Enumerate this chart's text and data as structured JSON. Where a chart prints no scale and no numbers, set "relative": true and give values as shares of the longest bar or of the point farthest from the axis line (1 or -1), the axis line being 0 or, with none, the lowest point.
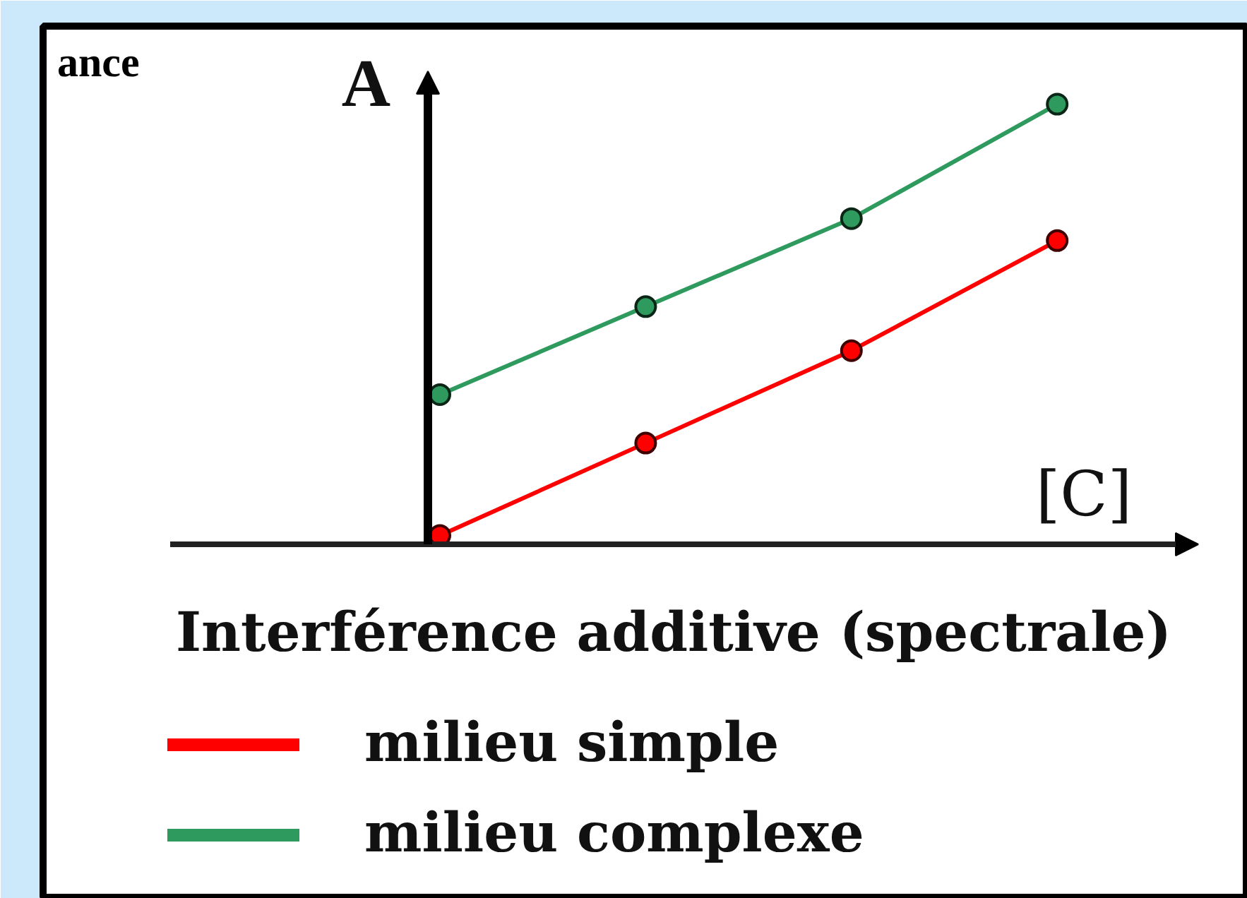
{
  "chart_data": {
    "type": "line",
    "title": "Interférence additive (spectrale)",
    "xlabel": "[C]",
    "ylabel": "A",
    "annotations": [
      "ance"
    ],
    "categories": [
      null,
      null,
      null,
      null
    ],
    "relative": true,
    "marker": "circle",
    "legend": "bottom left",
    "series": [
      {
        "name": "milieu simple",
        "color": "#ff0000",
        "values": [
          0.02,
          0.23,
          0.44,
          0.69
        ]
      },
      {
        "name": "milieu complexe",
        "color": "#2e9a5e",
        "values": [
          0.34,
          0.54,
          0.74,
          1
        ]
      }
    ]
  }
}
